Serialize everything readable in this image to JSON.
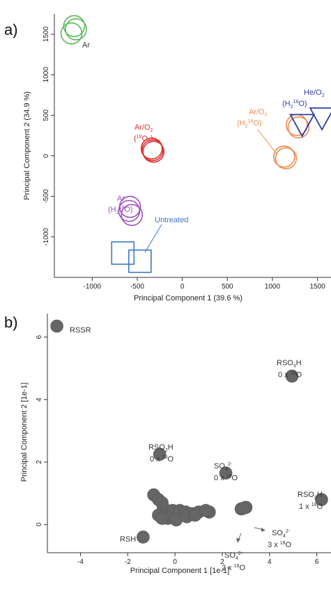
{
  "panel_labels": [
    "a)",
    "b)"
  ],
  "chart_data": [
    {
      "type": "scatter",
      "panel": "a)",
      "xlabel": "Principal Component 1 (39.6 %)",
      "ylabel": "Principal Component 2 (34.9 %)",
      "xlim": [
        -1420,
        1650
      ],
      "ylim": [
        -1500,
        1750
      ],
      "xticks": [
        -1000,
        -500,
        0,
        500,
        1000,
        1500
      ],
      "yticks": [
        -1000,
        -500,
        0,
        500,
        1000,
        1500
      ],
      "series": [
        {
          "name": "Ar",
          "color": "#5cb85c",
          "marker": "circle",
          "points": [
            [
              -1200,
              1600
            ],
            [
              -1230,
              1510
            ],
            [
              -1180,
              1560
            ]
          ]
        },
        {
          "name": "Ar/O2 (18O2)",
          "color": "#e03030",
          "marker": "circle",
          "points": [
            [
              -340,
              90
            ],
            [
              -320,
              50
            ],
            [
              -330,
              70
            ]
          ]
        },
        {
          "name": "Ar (H2 18O)",
          "color": "#9b4fc0",
          "marker": "circle",
          "points": [
            [
              -580,
              -630
            ],
            [
              -560,
              -730
            ],
            [
              -590,
              -680
            ]
          ]
        },
        {
          "name": "Untreated",
          "color": "#3a78c2",
          "marker": "square",
          "points": [
            [
              -660,
              -1200
            ],
            [
              -470,
              -1300
            ]
          ]
        },
        {
          "name": "Ar/O2 (H2 18O)",
          "color": "#f08a50",
          "marker": "circle",
          "points": [
            [
              1130,
              -10
            ],
            [
              1150,
              -30
            ],
            [
              1290,
              350
            ],
            [
              1270,
              380
            ]
          ]
        },
        {
          "name": "He/O2 (H2 18O)",
          "color": "#2e3fa0",
          "marker": "triangle",
          "points": [
            [
              1330,
              380
            ],
            [
              1550,
              460
            ]
          ]
        }
      ],
      "annotations": [
        {
          "lines": [
            "Ar"
          ],
          "color": "#3a3a3a"
        },
        {
          "lines": [
            "Ar/O",
            "(",
            "O",
            ")"
          ],
          "color": "#e03030"
        },
        {
          "lines": [
            "Ar",
            "(H",
            "O)"
          ],
          "color": "#9b4fc0"
        },
        {
          "lines": [
            "Untreated"
          ],
          "color": "#3a78c2"
        },
        {
          "lines": [
            "Ar/O",
            "(H",
            "O)"
          ],
          "color": "#f08a50"
        },
        {
          "lines": [
            "He/O",
            "(H",
            "O)"
          ],
          "color": "#2e3fa0"
        }
      ]
    },
    {
      "type": "scatter",
      "panel": "b)",
      "xlabel": "Principal Component 1 [1e-1]",
      "ylabel": "Principal Component 2 [1e-1]",
      "xlim": [
        -5.4,
        6.6
      ],
      "ylim": [
        -0.9,
        6.75
      ],
      "xticks": [
        -4,
        -2,
        0,
        2,
        4,
        6
      ],
      "yticks": [
        0,
        2,
        4,
        6
      ],
      "marker_color": "#666666",
      "points": [
        [
          -5.0,
          6.35
        ],
        [
          -1.35,
          -0.4
        ],
        [
          4.95,
          4.75
        ],
        [
          -0.65,
          2.25
        ],
        [
          2.15,
          1.65
        ],
        [
          6.2,
          0.8
        ],
        [
          2.8,
          0.5
        ],
        [
          3.0,
          0.55
        ],
        [
          2.9,
          0.52
        ],
        [
          -0.9,
          0.95
        ],
        [
          -0.7,
          0.8
        ],
        [
          -0.55,
          0.7
        ],
        [
          -0.5,
          0.55
        ],
        [
          -0.45,
          0.4
        ],
        [
          -0.7,
          0.3
        ],
        [
          -0.4,
          0.3
        ],
        [
          -0.15,
          0.25
        ],
        [
          0.1,
          0.3
        ],
        [
          0.3,
          0.35
        ],
        [
          -0.1,
          0.45
        ],
        [
          0.2,
          0.45
        ],
        [
          0.45,
          0.4
        ],
        [
          0.7,
          0.35
        ],
        [
          1.0,
          0.4
        ],
        [
          1.45,
          0.4
        ],
        [
          -0.3,
          0.2
        ],
        [
          0.05,
          0.15
        ],
        [
          0.5,
          0.25
        ],
        [
          0.85,
          0.3
        ],
        [
          -0.55,
          0.2
        ],
        [
          1.3,
          0.45
        ]
      ],
      "labels": [
        {
          "text": "RSSR"
        },
        {
          "text": "RSH"
        },
        {
          "lines": [
            "RSO3H",
            "0 x 18O"
          ]
        },
        {
          "lines": [
            "RSO2H",
            "0 x 18O"
          ]
        },
        {
          "lines": [
            "SO4 2-",
            "0 x 18O"
          ]
        },
        {
          "lines": [
            "RSO3H",
            "1 x 18O"
          ]
        },
        {
          "lines": [
            "SO4 2-",
            "3 x 18O"
          ]
        },
        {
          "lines": [
            "SO4 2-",
            "2 x 18O"
          ]
        }
      ]
    }
  ]
}
